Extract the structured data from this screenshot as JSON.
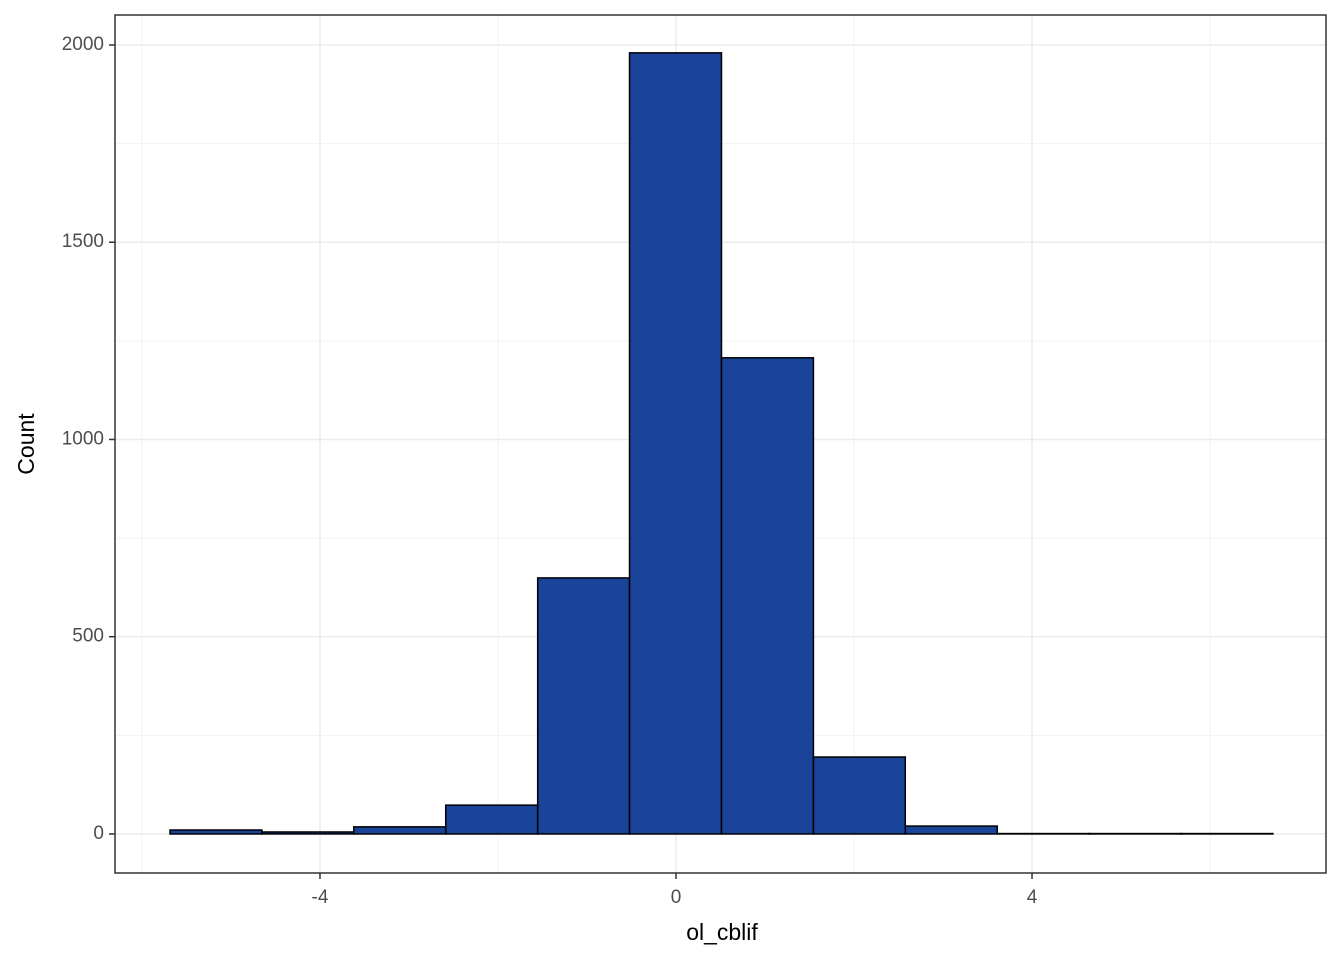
{
  "chart_data": {
    "type": "histogram",
    "x_label": "ol_cblif",
    "y_label": "Count",
    "bins": [
      -5.685,
      -4.652,
      -3.62,
      -2.587,
      -1.554,
      -0.522,
      0.511,
      1.544,
      2.576,
      3.609,
      4.642,
      5.674,
      6.707
    ],
    "values": [
      10,
      5,
      18,
      73,
      649,
      1980,
      1207,
      195,
      20,
      1,
      1,
      1
    ],
    "color": "#1a4499",
    "xlim": [
      -6.303,
      7.303
    ],
    "xticks": [
      -4,
      0,
      4
    ],
    "ylim": [
      -99,
      2076
    ],
    "yticks": [
      0,
      500,
      1000,
      1500,
      2000
    ],
    "grid": true
  }
}
